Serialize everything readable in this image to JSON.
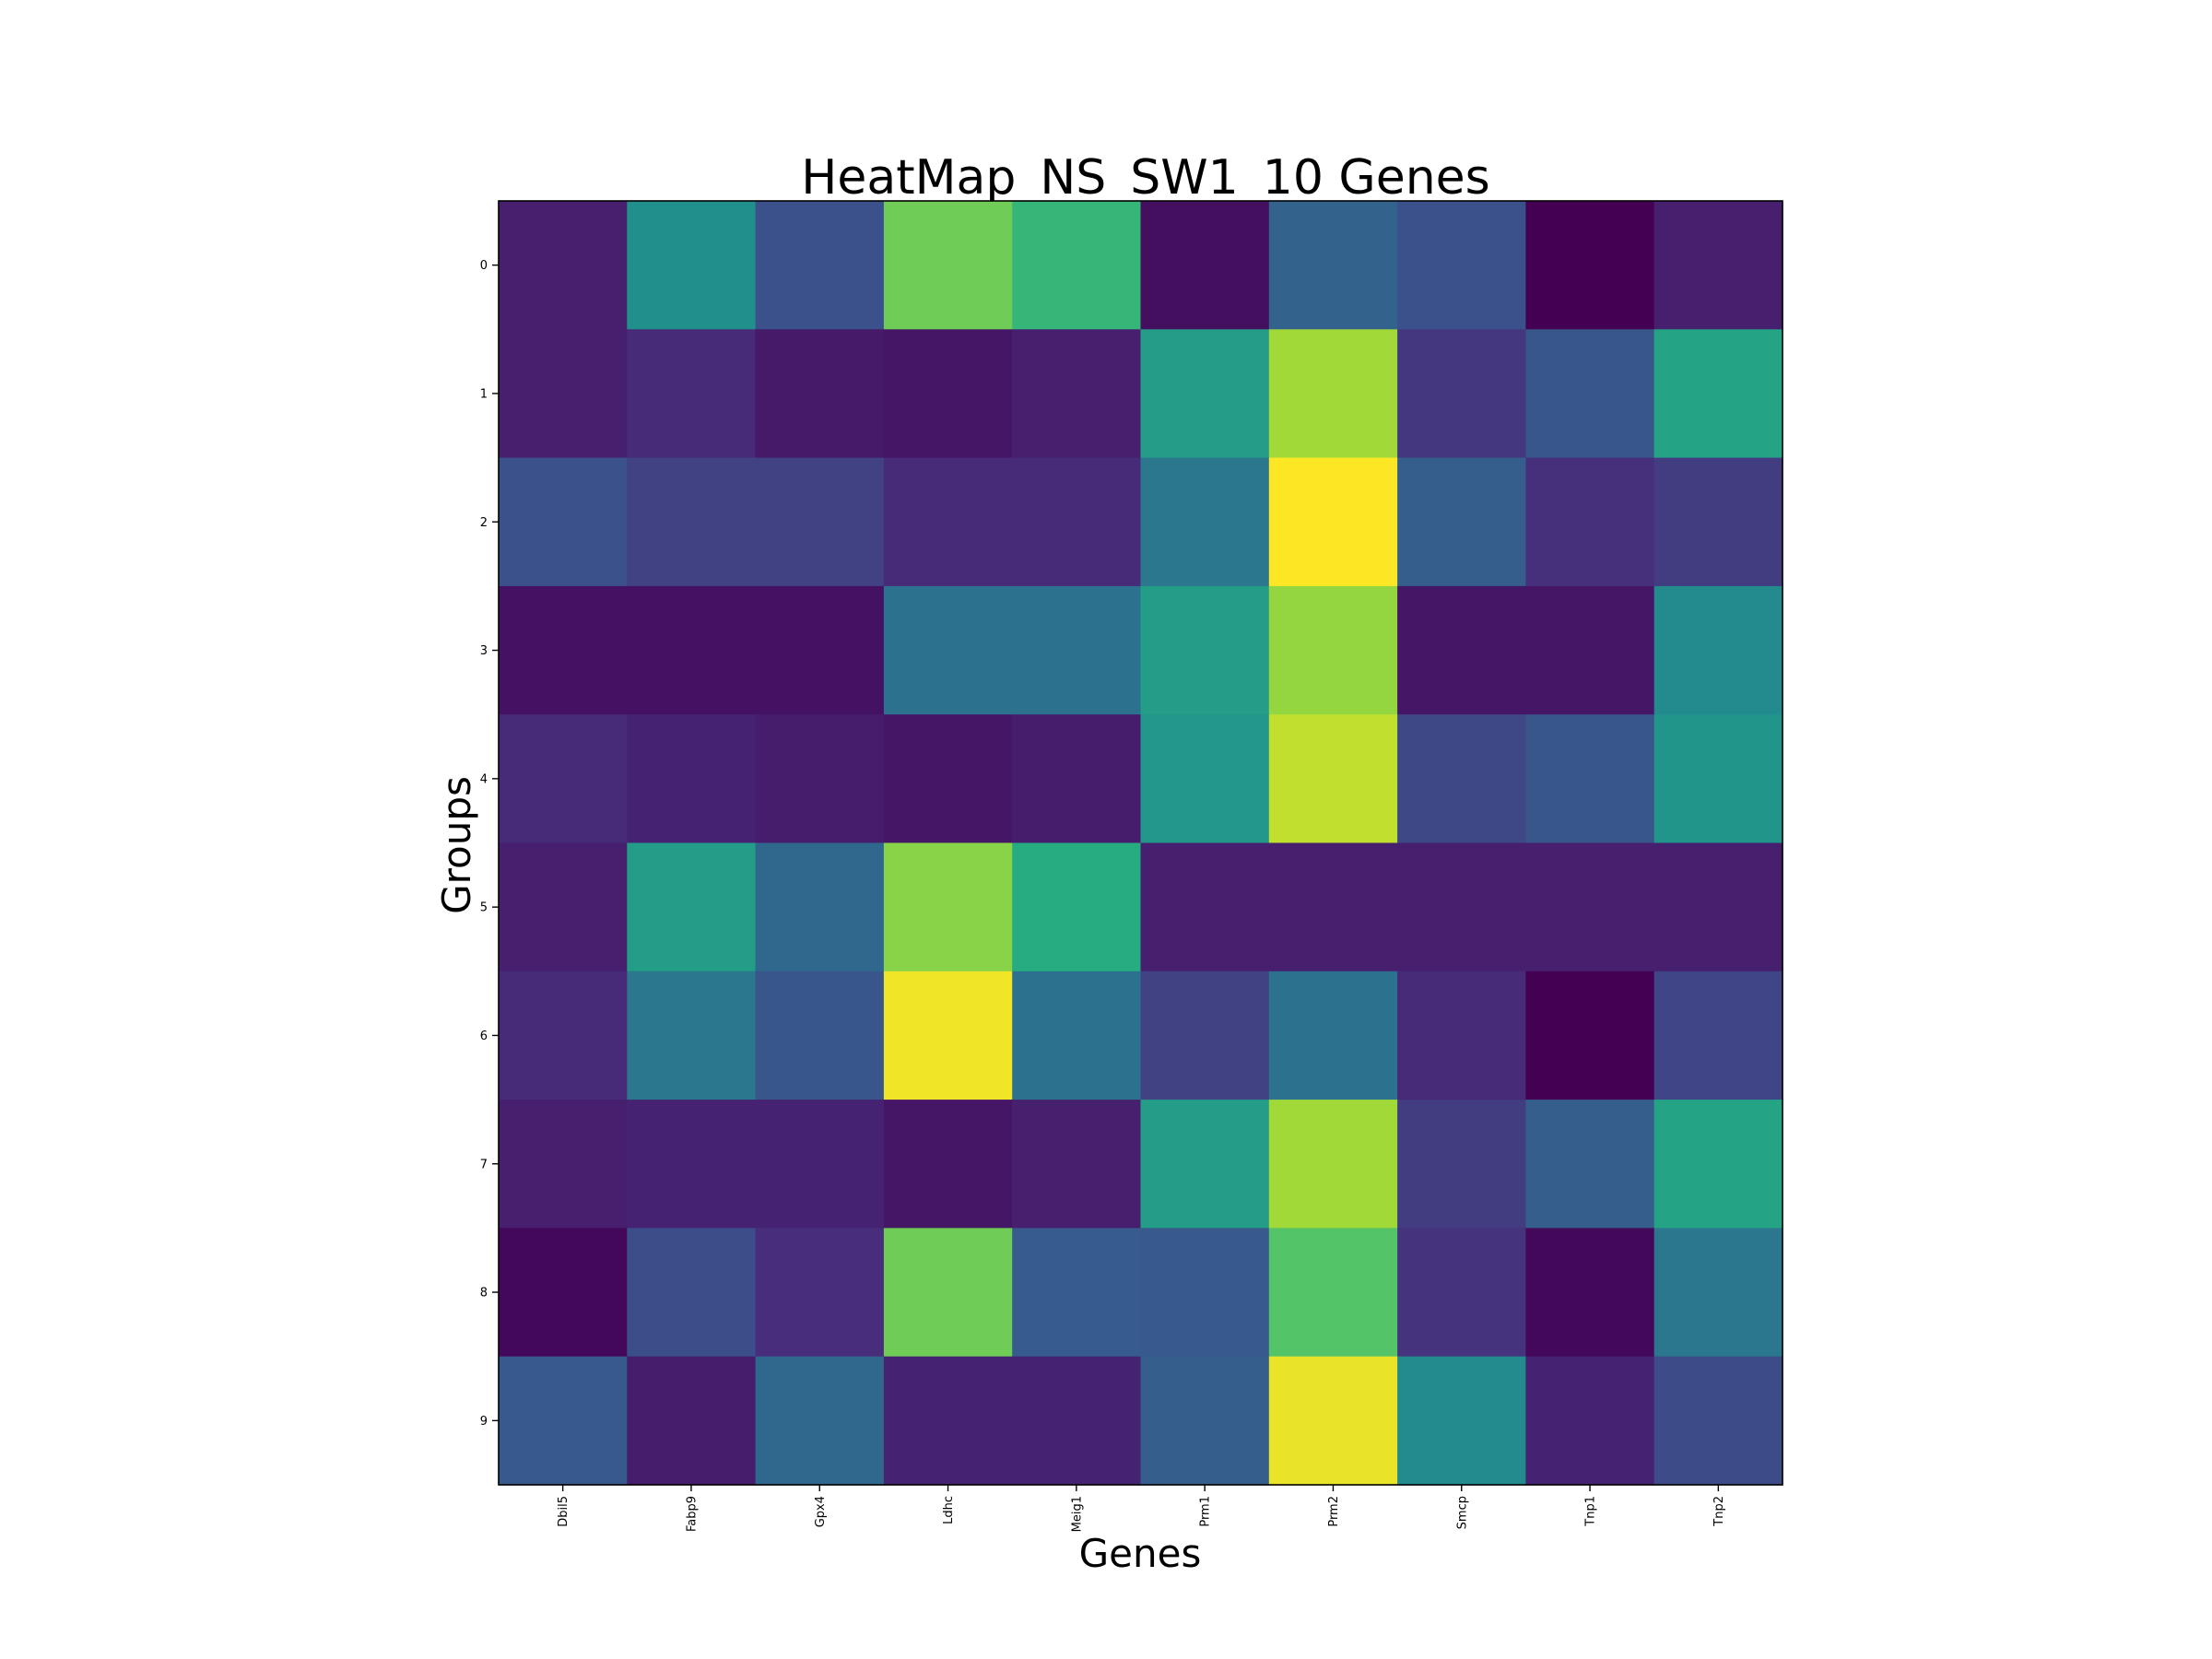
{
  "chart_data": {
    "type": "heatmap",
    "title": "HeatMap_NS_SW1_10 Genes",
    "xlabel": "Genes",
    "ylabel": "Groups",
    "x_categories": [
      "Dbil5",
      "Fabp9",
      "Gpx4",
      "Ldhc",
      "Meig1",
      "Prm1",
      "Prm2",
      "Smcp",
      "Tnp1",
      "Tnp2"
    ],
    "y_categories": [
      "0",
      "1",
      "2",
      "3",
      "4",
      "5",
      "6",
      "7",
      "8",
      "9"
    ],
    "colormap": "viridis",
    "value_range": [
      0,
      1
    ],
    "values": [
      [
        0.09,
        0.5,
        0.25,
        0.78,
        0.66,
        0.04,
        0.32,
        0.25,
        0.0,
        0.09
      ],
      [
        0.09,
        0.12,
        0.07,
        0.06,
        0.09,
        0.55,
        0.86,
        0.16,
        0.27,
        0.58
      ],
      [
        0.25,
        0.2,
        0.2,
        0.12,
        0.12,
        0.4,
        1.0,
        0.3,
        0.14,
        0.18
      ],
      [
        0.05,
        0.05,
        0.05,
        0.38,
        0.38,
        0.55,
        0.84,
        0.06,
        0.06,
        0.48
      ],
      [
        0.12,
        0.1,
        0.08,
        0.06,
        0.08,
        0.53,
        0.91,
        0.22,
        0.27,
        0.52
      ],
      [
        0.09,
        0.55,
        0.34,
        0.82,
        0.62,
        0.09,
        0.09,
        0.09,
        0.09,
        0.09
      ],
      [
        0.12,
        0.4,
        0.27,
        0.98,
        0.38,
        0.2,
        0.38,
        0.12,
        0.0,
        0.21
      ],
      [
        0.09,
        0.1,
        0.1,
        0.06,
        0.09,
        0.55,
        0.86,
        0.18,
        0.3,
        0.58
      ],
      [
        0.02,
        0.24,
        0.13,
        0.78,
        0.29,
        0.28,
        0.73,
        0.15,
        0.02,
        0.4
      ],
      [
        0.28,
        0.08,
        0.34,
        0.1,
        0.1,
        0.3,
        0.97,
        0.48,
        0.1,
        0.23
      ]
    ],
    "grid": false,
    "colorbar": false
  }
}
